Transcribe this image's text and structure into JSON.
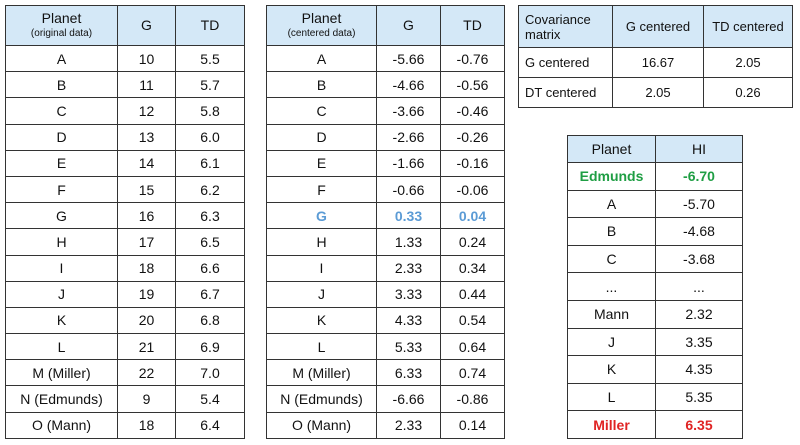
{
  "original": {
    "headers": [
      "Planet",
      "G",
      "TD"
    ],
    "note": "(original data)",
    "rows": [
      [
        "A",
        "10",
        "5.5"
      ],
      [
        "B",
        "11",
        "5.7"
      ],
      [
        "C",
        "12",
        "5.8"
      ],
      [
        "D",
        "13",
        "6.0"
      ],
      [
        "E",
        "14",
        "6.1"
      ],
      [
        "F",
        "15",
        "6.2"
      ],
      [
        "G",
        "16",
        "6.3"
      ],
      [
        "H",
        "17",
        "6.5"
      ],
      [
        "I",
        "18",
        "6.6"
      ],
      [
        "J",
        "19",
        "6.7"
      ],
      [
        "K",
        "20",
        "6.8"
      ],
      [
        "L",
        "21",
        "6.9"
      ],
      [
        "M (Miller)",
        "22",
        "7.0"
      ],
      [
        "N (Edmunds)",
        "9",
        "5.4"
      ],
      [
        "O (Mann)",
        "18",
        "6.4"
      ]
    ]
  },
  "centered": {
    "headers": [
      "Planet",
      "G",
      "TD"
    ],
    "note": "(centered data)",
    "rows": [
      [
        "A",
        "-5.66",
        "-0.76"
      ],
      [
        "B",
        "-4.66",
        "-0.56"
      ],
      [
        "C",
        "-3.66",
        "-0.46"
      ],
      [
        "D",
        "-2.66",
        "-0.26"
      ],
      [
        "E",
        "-1.66",
        "-0.16"
      ],
      [
        "F",
        "-0.66",
        "-0.06"
      ],
      [
        "G",
        "0.33",
        "0.04"
      ],
      [
        "H",
        "1.33",
        "0.24"
      ],
      [
        "I",
        "2.33",
        "0.34"
      ],
      [
        "J",
        "3.33",
        "0.44"
      ],
      [
        "K",
        "4.33",
        "0.54"
      ],
      [
        "L",
        "5.33",
        "0.64"
      ],
      [
        "M (Miller)",
        "6.33",
        "0.74"
      ],
      [
        "N (Edmunds)",
        "-6.66",
        "-0.86"
      ],
      [
        "O (Mann)",
        "2.33",
        "0.14"
      ]
    ]
  },
  "covariance": {
    "headers": [
      "Covariance matrix",
      "G centered",
      "TD centered"
    ],
    "rows": [
      [
        "G centered",
        "16.67",
        "2.05"
      ],
      [
        "DT centered",
        "2.05",
        "0.26"
      ]
    ]
  },
  "hi": {
    "headers": [
      "Planet",
      "HI"
    ],
    "rows": [
      [
        "Edmunds",
        "-6.70"
      ],
      [
        "A",
        "-5.70"
      ],
      [
        "B",
        "-4.68"
      ],
      [
        "C",
        "-3.68"
      ],
      [
        "...",
        "..."
      ],
      [
        "Mann",
        "2.32"
      ],
      [
        "J",
        "3.35"
      ],
      [
        "K",
        "4.35"
      ],
      [
        "L",
        "5.35"
      ],
      [
        "Miller",
        "6.35"
      ]
    ]
  }
}
